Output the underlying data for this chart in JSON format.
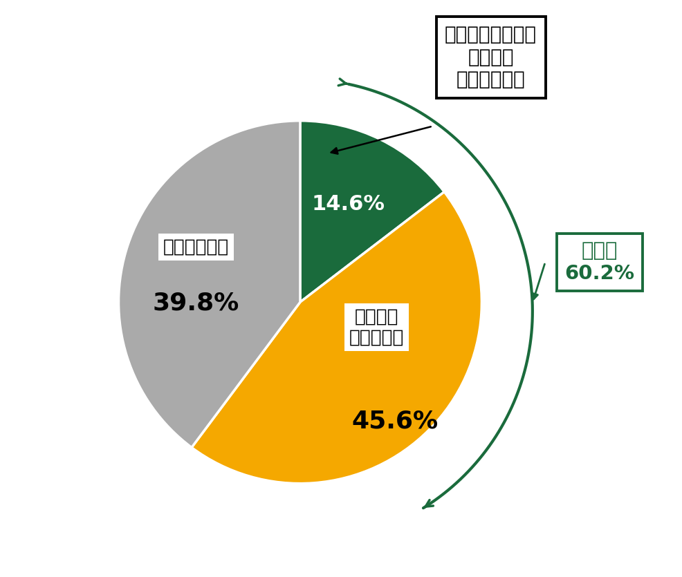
{
  "slices": [
    14.6,
    45.6,
    39.8
  ],
  "colors": [
    "#1a6b3c",
    "#f5a800",
    "#aaaaaa"
  ],
  "pct_labels": [
    "14.6%",
    "45.6%",
    "39.8%"
  ],
  "label_green": "よく知っており、\n改正案に\n注目してきた",
  "label_orange_text": "何となく\n知っていた",
  "label_gray_text": "知らなかった",
  "ninchi_label": "認知者\n60.2%",
  "dark_green": "#1a6b3c",
  "orange": "#f5a800",
  "gray": "#aaaaaa",
  "background": "#ffffff",
  "startangle": 90,
  "figsize": [
    9.86,
    8.35
  ],
  "dpi": 100
}
